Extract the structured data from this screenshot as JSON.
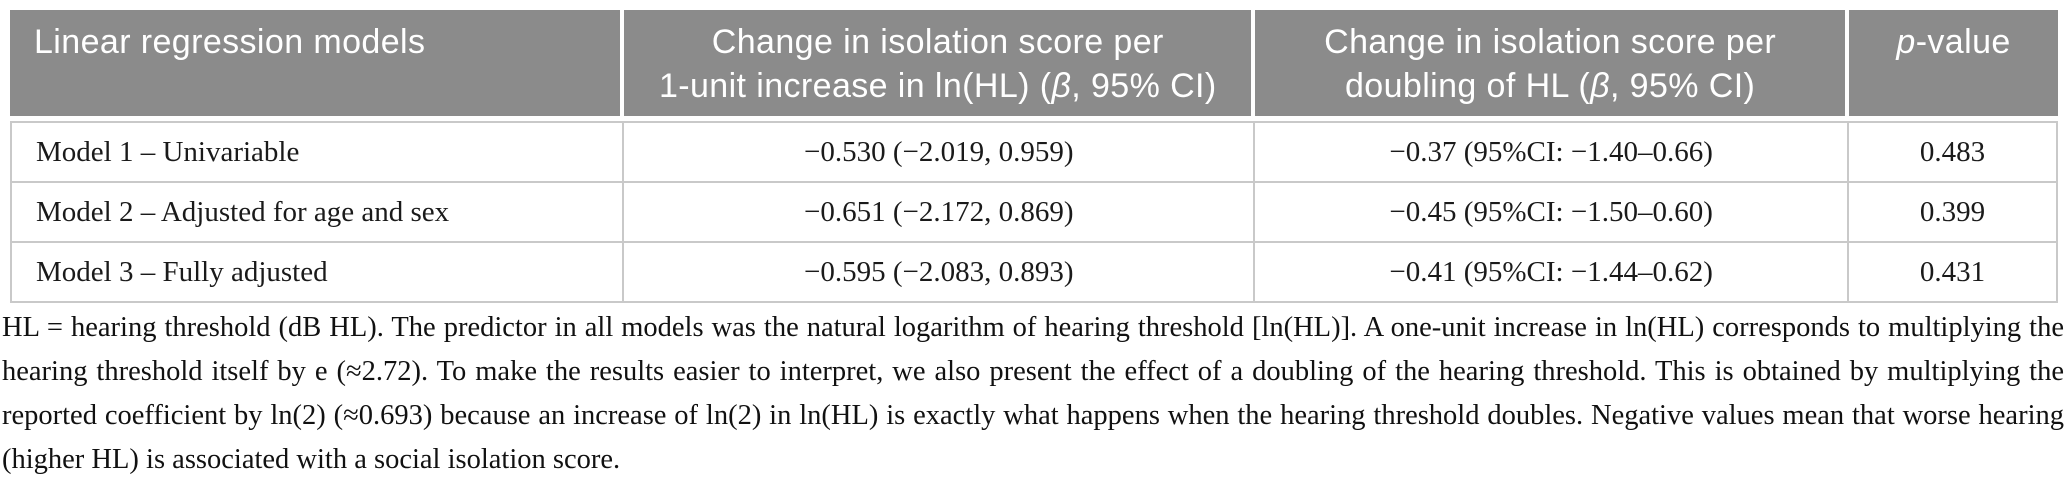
{
  "table": {
    "header": {
      "col1": "Linear regression models",
      "col2": {
        "line1": "Change in isolation score per",
        "line2_pre": "1-unit increase in ln(HL) (",
        "beta": "β",
        "line2_post": ", 95% CI)"
      },
      "col3": {
        "line1": "Change in isolation score per",
        "line2_pre": "doubling of HL (",
        "beta": "β",
        "line2_post": ", 95% CI)"
      },
      "col4": {
        "p": "p",
        "suffix": "-value"
      }
    },
    "rows": [
      {
        "model": "Model 1 – Univariable",
        "per_unit": "−0.530 (−2.019, 0.959)",
        "per_doubling": "−0.37 (95%CI: −1.40–0.66)",
        "p_value": "0.483"
      },
      {
        "model": "Model 2 – Adjusted for age and sex",
        "per_unit": "−0.651 (−2.172, 0.869)",
        "per_doubling": "−0.45 (95%CI: −1.50–0.60)",
        "p_value": "0.399"
      },
      {
        "model": "Model 3 – Fully adjusted",
        "per_unit": "−0.595 (−2.083, 0.893)",
        "per_doubling": "−0.41 (95%CI: −1.44–0.62)",
        "p_value": "0.431"
      }
    ]
  },
  "footnote": "HL = hearing threshold (dB HL). The predictor in all models was the natural logarithm of hearing threshold [ln(HL)]. A one-unit increase in ln(HL) corresponds to multiplying the hearing threshold itself by e (≈2.72). To make the results easier to interpret, we also present the effect of a doubling of the hearing threshold. This is obtained by multiplying the reported coefficient by ln(2) (≈0.693) because an increase of ln(2) in ln(HL) is exactly what happens when the hearing threshold doubles. Negative values mean that worse hearing (higher HL) is associated with a social isolation score.",
  "colors": {
    "header_bg": "#8b8b8b",
    "header_text": "#ffffff",
    "border": "#c9c9c9",
    "body_text": "#1a1a1a"
  }
}
